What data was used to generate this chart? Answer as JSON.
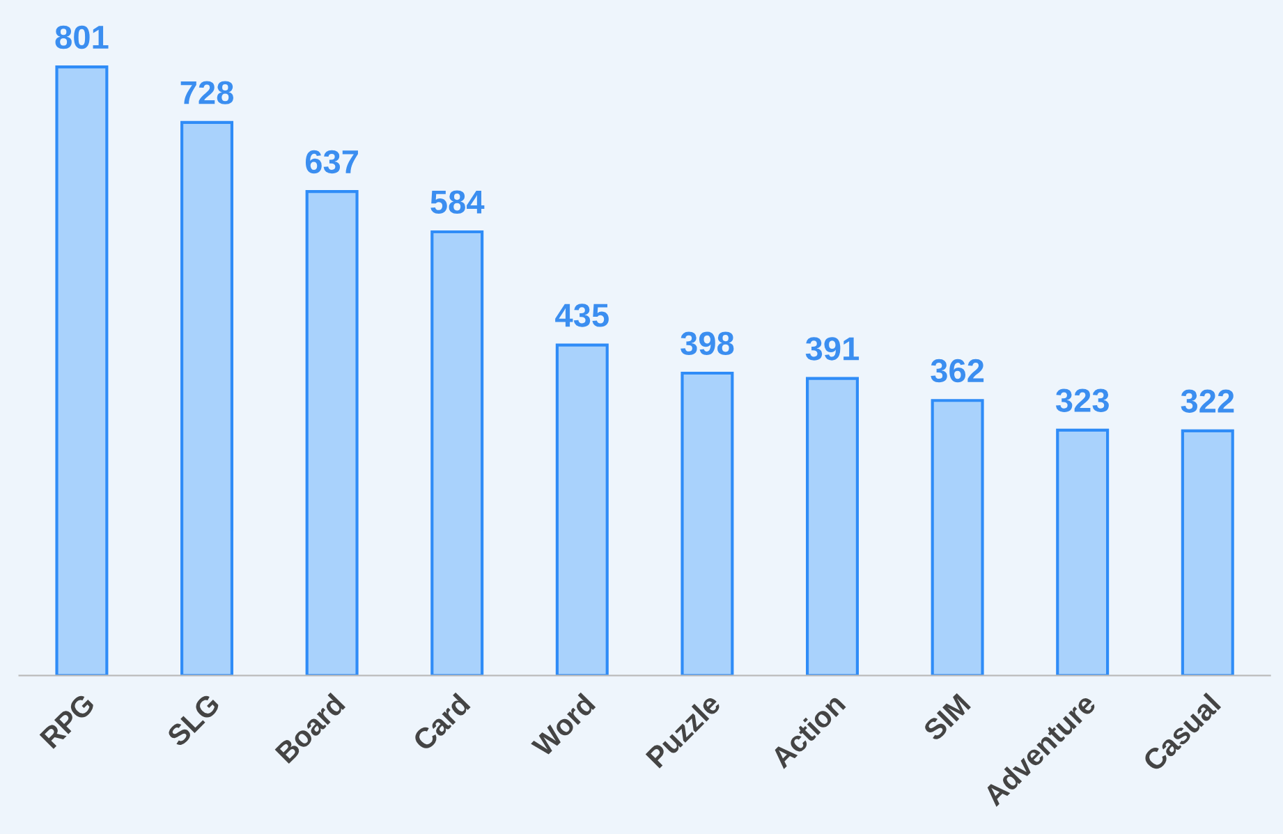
{
  "chart_data": {
    "type": "bar",
    "categories": [
      "RPG",
      "SLG",
      "Board",
      "Card",
      "Word",
      "Puzzle",
      "Action",
      "SIM",
      "Adventure",
      "Casual"
    ],
    "values": [
      801,
      728,
      637,
      584,
      435,
      398,
      391,
      362,
      323,
      322
    ],
    "color": "#a9d2fc",
    "data_labels": true,
    "grid": false,
    "legend": false
  }
}
